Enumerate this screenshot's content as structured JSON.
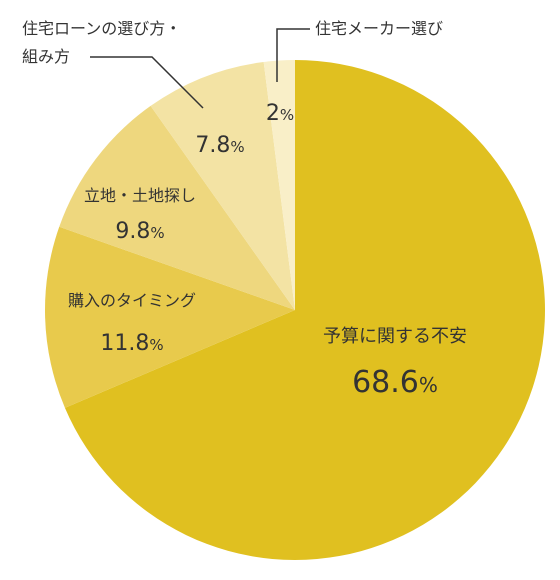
{
  "chart_data": {
    "type": "pie",
    "title": "",
    "start_angle_deg": 0,
    "direction": "clockwise",
    "categories": [
      "予算に関する不安",
      "購入のタイミング",
      "立地・土地探し",
      "住宅ローンの選び方・組み方",
      "住宅メーカー選び"
    ],
    "label_lines": [
      [
        "予算に関する不安"
      ],
      [
        "購入のタイミング"
      ],
      [
        "立地・土地探し"
      ],
      [
        "住宅ローンの選び方・",
        "組み方"
      ],
      [
        "住宅メーカー選び"
      ]
    ],
    "values": [
      68.6,
      11.8,
      9.8,
      7.8,
      2
    ],
    "value_labels": [
      "68.6",
      "11.8",
      "9.8",
      "7.8",
      "2"
    ],
    "unit": "%",
    "colors": [
      "#e0c020",
      "#e8ca4c",
      "#eed77e",
      "#f3e3a4",
      "#f9efc8"
    ]
  }
}
